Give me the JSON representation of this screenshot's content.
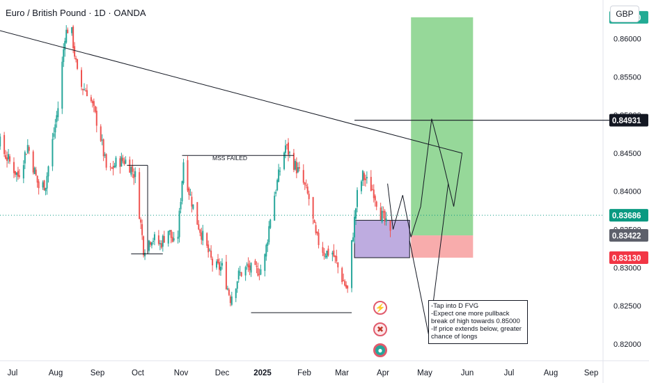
{
  "header": {
    "title": "Euro / British Pound · 1D · OANDA",
    "currency": "GBP"
  },
  "colors": {
    "up": "#26a69a",
    "down": "#ef5350",
    "target_zone": "#8bd48e",
    "stop_zone": "#f7a3a3",
    "fvg_box": "#b39ddb",
    "current_price": "#089981",
    "last_close": "#5d606b",
    "stop_label": "#f23645",
    "target_label": "#22ab94"
  },
  "annotations": {
    "mss_label": "MSS FAILED",
    "note_lines": [
      "-Tap into D FVG",
      "-Expect one more pullback",
      "break of high towards 0.85000",
      "-If price extends below, greater",
      "chance of longs"
    ]
  },
  "price_labels": {
    "target": "0.86280",
    "level": "0.84931",
    "current": "0.83686",
    "last": "0.83422",
    "stop": "0.83130"
  },
  "chart_data": {
    "type": "candlestick",
    "title": "Euro / British Pound · 1D · OANDA",
    "y_axis": {
      "ticks": [
        "0.86000",
        "0.85500",
        "0.85000",
        "0.84500",
        "0.84000",
        "0.83500",
        "0.83000",
        "0.82500",
        "0.82000"
      ],
      "range": [
        0.8178,
        0.8647
      ]
    },
    "x_axis": {
      "ticks": [
        "Jul",
        "Aug",
        "Sep",
        "Oct",
        "Nov",
        "Dec",
        "2025",
        "Feb",
        "Mar",
        "Apr",
        "May",
        "Jun",
        "Jul",
        "Aug",
        "Sep"
      ],
      "bold": [
        "2025"
      ]
    },
    "anchors": [
      [
        "Jun 01",
        0.847
      ],
      [
        "Jun 10",
        0.8455
      ],
      [
        "Jun 15",
        0.8495
      ],
      [
        "Jun 25",
        0.845
      ],
      [
        "Jul 05",
        0.842
      ],
      [
        "Jul 12",
        0.846
      ],
      [
        "Jul 20",
        0.8405
      ],
      [
        "Jul 25",
        0.841
      ],
      [
        "Aug 03",
        0.851
      ],
      [
        "Aug 08",
        0.8605
      ],
      [
        "Aug 12",
        0.862
      ],
      [
        "Aug 18",
        0.854
      ],
      [
        "Aug 25",
        0.853
      ],
      [
        "Sep 02",
        0.848
      ],
      [
        "Sep 08",
        0.842
      ],
      [
        "Sep 15",
        0.844
      ],
      [
        "Sep 22",
        0.844
      ],
      [
        "Sep 28",
        0.842
      ],
      [
        "Oct 04",
        0.8325
      ],
      [
        "Oct 10",
        0.834
      ],
      [
        "Oct 16",
        0.833
      ],
      [
        "Oct 22",
        0.835
      ],
      [
        "Oct 28",
        0.832
      ],
      [
        "Nov 02",
        0.844
      ],
      [
        "Nov 06",
        0.84
      ],
      [
        "Nov 12",
        0.836
      ],
      [
        "Nov 18",
        0.833
      ],
      [
        "Nov 24",
        0.83
      ],
      [
        "Nov 30",
        0.83
      ],
      [
        "Dec 06",
        0.826
      ],
      [
        "Dec 12",
        0.829
      ],
      [
        "Dec 18",
        0.83
      ],
      [
        "Dec 24",
        0.8295
      ],
      [
        "Dec 30",
        0.83
      ],
      [
        "Jan 05",
        0.838
      ],
      [
        "Jan 10",
        0.842
      ],
      [
        "Jan 15",
        0.846
      ],
      [
        "Jan 20",
        0.844
      ],
      [
        "Jan 26",
        0.842
      ],
      [
        "Feb 01",
        0.839
      ],
      [
        "Feb 06",
        0.834
      ],
      [
        "Feb 12",
        0.832
      ],
      [
        "Feb 18",
        0.832
      ],
      [
        "Feb 24",
        0.829
      ],
      [
        "Mar 01",
        0.827
      ],
      [
        "Mar 04",
        0.833
      ],
      [
        "Mar 08",
        0.8395
      ],
      [
        "Mar 12",
        0.842
      ],
      [
        "Mar 16",
        0.841
      ],
      [
        "Mar 20",
        0.84
      ],
      [
        "Mar 24",
        0.8375
      ],
      [
        "Mar 28",
        0.836
      ],
      [
        "Apr 01",
        0.8342
      ]
    ],
    "levels": {
      "target": 0.8628,
      "key_level": 0.84931,
      "current": 0.83686,
      "last": 0.83422,
      "stop": 0.8313
    },
    "zones": [
      {
        "name": "target",
        "from": 0.83422,
        "to": 0.8628,
        "x_from": "Apr 16",
        "x_to": "May 31"
      },
      {
        "name": "stop",
        "from": 0.8313,
        "to": 0.83422,
        "x_from": "Apr 16",
        "x_to": "May 31"
      },
      {
        "name": "D FVG",
        "from": 0.8313,
        "to": 0.8362,
        "x_from": "Mar 06",
        "x_to": "Apr 15"
      }
    ],
    "projection": [
      [
        "Mar 30",
        0.841
      ],
      [
        "Apr 03",
        0.835
      ],
      [
        "Apr 10",
        0.8395
      ],
      [
        "Apr 16",
        0.834
      ],
      [
        "Apr 23",
        0.838
      ],
      [
        "May 01",
        0.8495
      ],
      [
        "May 09",
        0.844
      ],
      [
        "May 17",
        0.838
      ],
      [
        "May 23",
        0.845
      ],
      [
        "Jun 02",
        0.862
      ]
    ],
    "alt_projection": [
      [
        "Apr 15",
        0.8335
      ],
      [
        "Apr 29",
        0.821
      ],
      [
        "May 13",
        0.841
      ]
    ],
    "legend": "none",
    "grid": false
  }
}
